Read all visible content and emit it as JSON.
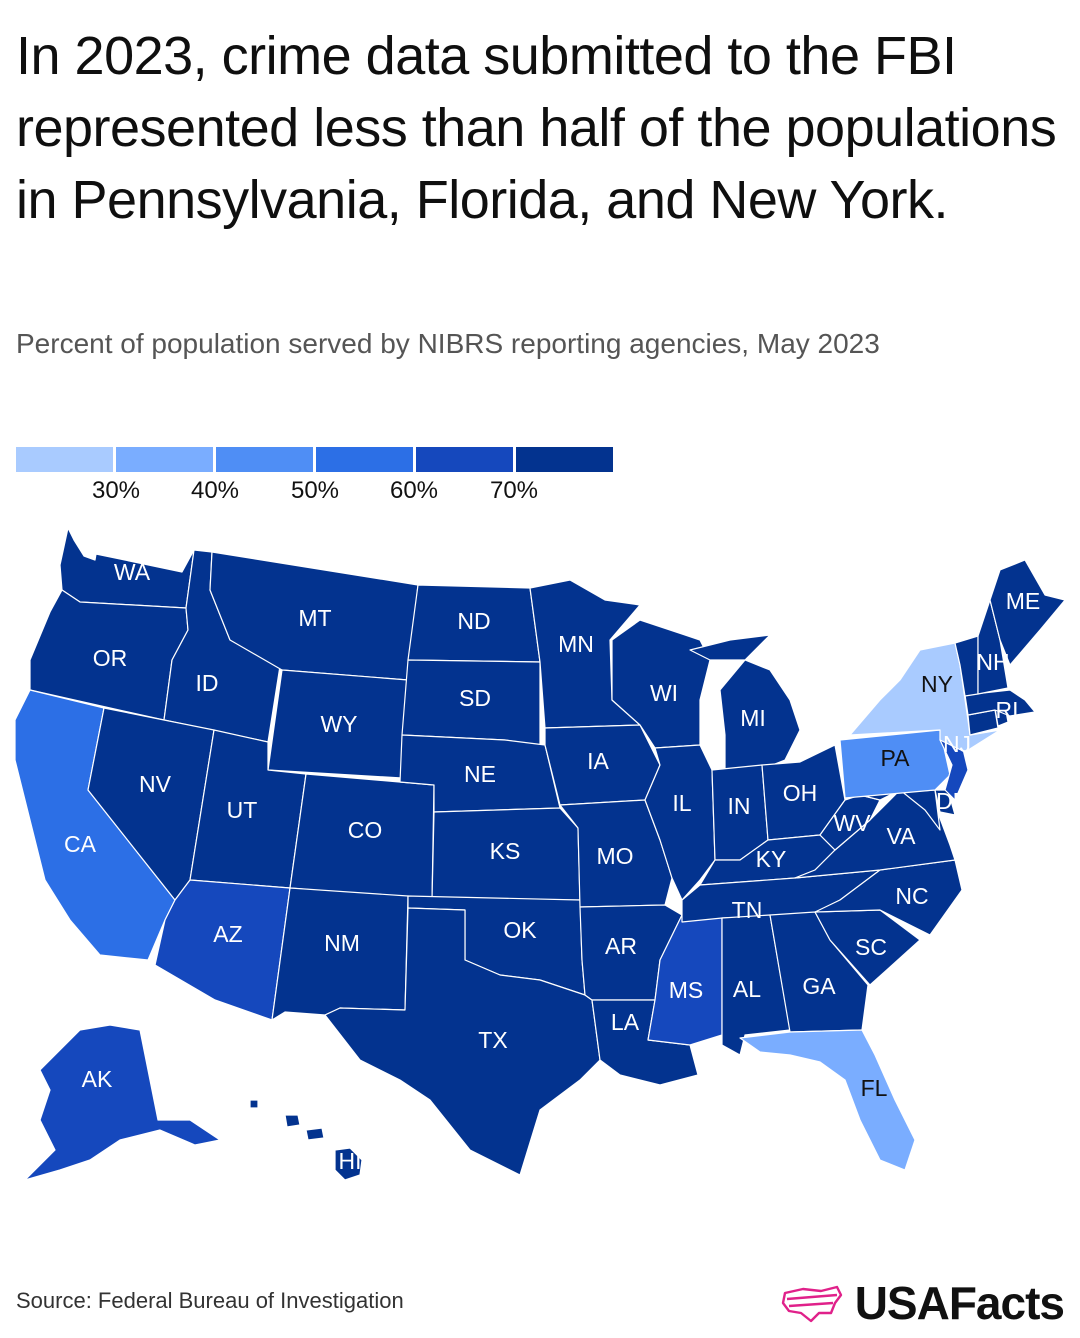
{
  "title": "In 2023, crime data submitted to the FBI represented less than half of the populations in Pennsylvania, Florida, and New York.",
  "subtitle": "Percent of population served by NIBRS reporting agencies, May 2023",
  "legend": {
    "colors": [
      "#a9cbff",
      "#7aadff",
      "#4f8ef5",
      "#2c6fe6",
      "#1548bd",
      "#03338f"
    ],
    "ticks": [
      "30%",
      "40%",
      "50%",
      "60%",
      "70%"
    ]
  },
  "colors": {
    "bin1": "#a9cbff",
    "bin2": "#7aadff",
    "bin3": "#4f8ef5",
    "bin4": "#2c6fe6",
    "bin5": "#1548bd",
    "bin6": "#03338f",
    "brand_pink": "#e0218a"
  },
  "states": {
    "WA": {
      "label": "WA",
      "bin": 6
    },
    "OR": {
      "label": "OR",
      "bin": 6
    },
    "CA": {
      "label": "CA",
      "bin": 4
    },
    "ID": {
      "label": "ID",
      "bin": 6
    },
    "NV": {
      "label": "NV",
      "bin": 6
    },
    "MT": {
      "label": "MT",
      "bin": 6
    },
    "WY": {
      "label": "WY",
      "bin": 6
    },
    "UT": {
      "label": "UT",
      "bin": 6
    },
    "AZ": {
      "label": "AZ",
      "bin": 5
    },
    "CO": {
      "label": "CO",
      "bin": 6
    },
    "NM": {
      "label": "NM",
      "bin": 6
    },
    "ND": {
      "label": "ND",
      "bin": 6
    },
    "SD": {
      "label": "SD",
      "bin": 6
    },
    "NE": {
      "label": "NE",
      "bin": 6
    },
    "KS": {
      "label": "KS",
      "bin": 6
    },
    "OK": {
      "label": "OK",
      "bin": 6
    },
    "TX": {
      "label": "TX",
      "bin": 6
    },
    "MN": {
      "label": "MN",
      "bin": 6
    },
    "IA": {
      "label": "IA",
      "bin": 6
    },
    "MO": {
      "label": "MO",
      "bin": 6
    },
    "AR": {
      "label": "AR",
      "bin": 6
    },
    "LA": {
      "label": "LA",
      "bin": 6
    },
    "WI": {
      "label": "WI",
      "bin": 6
    },
    "IL": {
      "label": "IL",
      "bin": 6
    },
    "MS": {
      "label": "MS",
      "bin": 5
    },
    "MI": {
      "label": "MI",
      "bin": 6
    },
    "IN": {
      "label": "IN",
      "bin": 6
    },
    "OH": {
      "label": "OH",
      "bin": 6
    },
    "KY": {
      "label": "KY",
      "bin": 6
    },
    "TN": {
      "label": "TN",
      "bin": 6
    },
    "AL": {
      "label": "AL",
      "bin": 6
    },
    "GA": {
      "label": "GA",
      "bin": 6
    },
    "FL": {
      "label": "FL",
      "bin": 2
    },
    "SC": {
      "label": "SC",
      "bin": 6
    },
    "NC": {
      "label": "NC",
      "bin": 6
    },
    "VA": {
      "label": "VA",
      "bin": 6
    },
    "WV": {
      "label": "WV",
      "bin": 6
    },
    "PA": {
      "label": "PA",
      "bin": 3
    },
    "NY": {
      "label": "NY",
      "bin": 1
    },
    "NJ": {
      "label": "NJ",
      "bin": 5
    },
    "DE": {
      "label": "DE",
      "bin": 6
    },
    "MD": {
      "label": "",
      "bin": 6
    },
    "CT": {
      "label": "",
      "bin": 6
    },
    "RI": {
      "label": "RI",
      "bin": 6
    },
    "MA": {
      "label": "",
      "bin": 6
    },
    "VT": {
      "label": "",
      "bin": 6
    },
    "NH": {
      "label": "NH",
      "bin": 6
    },
    "ME": {
      "label": "ME",
      "bin": 6
    },
    "AK": {
      "label": "AK",
      "bin": 5
    },
    "HI": {
      "label": "HI",
      "bin": 6
    }
  },
  "source": "Source: Federal Bureau of Investigation",
  "brand": "USAFacts"
}
